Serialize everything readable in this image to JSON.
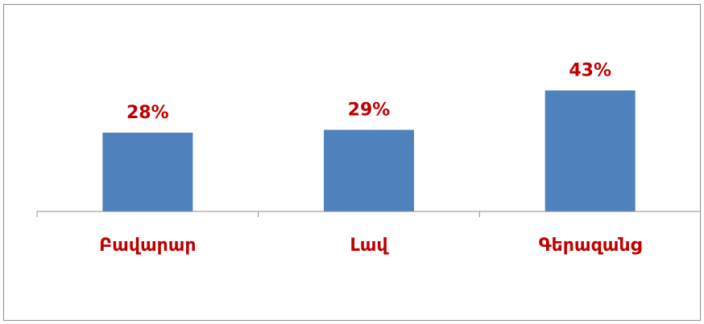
{
  "chart_data": {
    "type": "bar",
    "categories": [
      "Բավարար",
      "Լավ",
      "Գերազանց"
    ],
    "values": [
      28,
      29,
      43
    ],
    "value_labels": [
      "28%",
      "29%",
      "43%"
    ],
    "title": "",
    "xlabel": "",
    "ylabel": "",
    "ylim": [
      0,
      50
    ],
    "grid": false,
    "legend": "none",
    "colors": {
      "bar": "#4f81bd",
      "labels": "#c00000",
      "axis": "#8c8c8c"
    }
  }
}
